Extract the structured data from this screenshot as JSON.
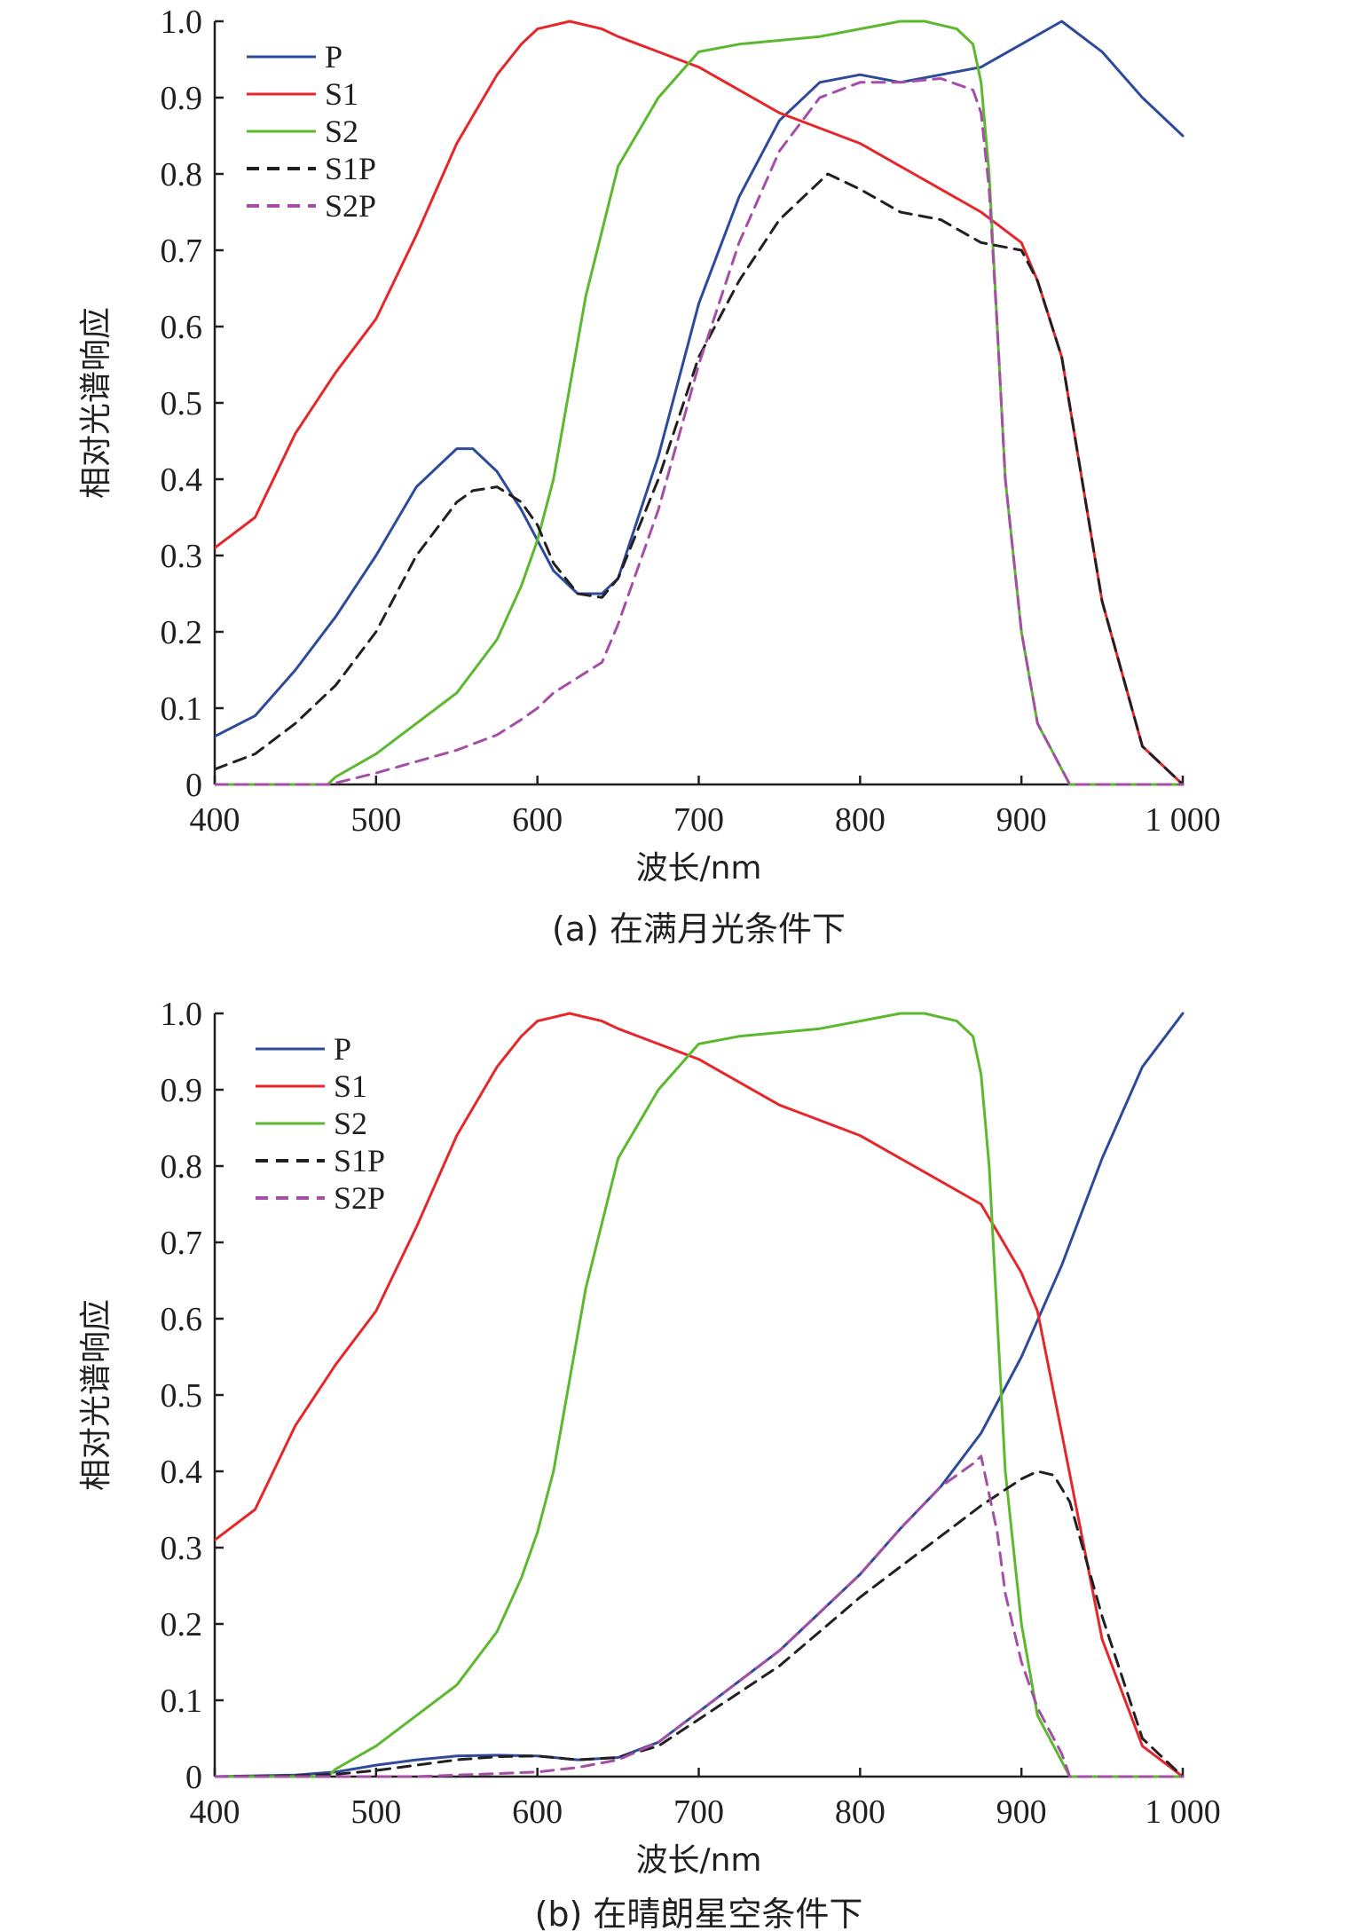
{
  "chart_data": [
    {
      "type": "line",
      "caption": "(a) 在满月光条件下",
      "xlabel": "波长/nm",
      "ylabel": "相对光谱响应",
      "xlim": [
        400,
        1000
      ],
      "ylim": [
        0,
        1.0
      ],
      "x_ticks": [
        400,
        500,
        600,
        700,
        800,
        900,
        1000
      ],
      "x_tick_labels": [
        "400",
        "500",
        "600",
        "700",
        "800",
        "900",
        "1 000"
      ],
      "y_ticks": [
        0,
        0.1,
        0.2,
        0.3,
        0.4,
        0.5,
        0.6,
        0.7,
        0.8,
        0.9,
        1.0
      ],
      "y_tick_labels": [
        "0",
        "0.1",
        "0.2",
        "0.3",
        "0.4",
        "0.5",
        "0.6",
        "0.7",
        "0.8",
        "0.9",
        "1.0"
      ],
      "legend_position": "top-left",
      "series": [
        {
          "name": "P",
          "color": "#2e4a9a",
          "dash": "solid",
          "x": [
            400,
            425,
            450,
            475,
            500,
            525,
            550,
            560,
            575,
            590,
            600,
            610,
            625,
            640,
            650,
            675,
            700,
            725,
            750,
            775,
            800,
            825,
            850,
            875,
            900,
            925,
            950,
            975,
            1000
          ],
          "y": [
            0.063,
            0.09,
            0.15,
            0.22,
            0.3,
            0.39,
            0.44,
            0.44,
            0.41,
            0.36,
            0.32,
            0.28,
            0.25,
            0.25,
            0.27,
            0.43,
            0.63,
            0.77,
            0.87,
            0.92,
            0.93,
            0.92,
            0.93,
            0.94,
            0.97,
            1.0,
            0.96,
            0.9,
            0.85
          ]
        },
        {
          "name": "S1",
          "color": "#e5262b",
          "dash": "solid",
          "x": [
            400,
            425,
            450,
            475,
            500,
            525,
            550,
            575,
            590,
            600,
            610,
            620,
            640,
            650,
            675,
            700,
            725,
            750,
            775,
            800,
            825,
            850,
            875,
            900,
            910,
            925,
            950,
            975,
            1000
          ],
          "y": [
            0.31,
            0.35,
            0.46,
            0.54,
            0.61,
            0.72,
            0.84,
            0.93,
            0.97,
            0.99,
            0.995,
            1.0,
            0.99,
            0.98,
            0.96,
            0.94,
            0.91,
            0.88,
            0.86,
            0.84,
            0.81,
            0.78,
            0.75,
            0.71,
            0.66,
            0.56,
            0.24,
            0.05,
            0.0
          ]
        },
        {
          "name": "S2",
          "color": "#5cb82e",
          "dash": "solid",
          "x": [
            400,
            470,
            475,
            500,
            525,
            550,
            575,
            590,
            600,
            610,
            620,
            630,
            650,
            675,
            700,
            725,
            750,
            775,
            800,
            825,
            840,
            860,
            870,
            875,
            880,
            885,
            890,
            900,
            910,
            920,
            925,
            930,
            1000
          ],
          "y": [
            0,
            0,
            0.01,
            0.04,
            0.08,
            0.12,
            0.19,
            0.26,
            0.32,
            0.4,
            0.52,
            0.64,
            0.81,
            0.9,
            0.96,
            0.97,
            0.975,
            0.98,
            0.99,
            1.0,
            1.0,
            0.99,
            0.97,
            0.92,
            0.8,
            0.6,
            0.4,
            0.2,
            0.08,
            0.04,
            0.02,
            0,
            0
          ]
        },
        {
          "name": "S1P",
          "color": "#231f20",
          "dash": "dashed",
          "x": [
            400,
            425,
            450,
            475,
            500,
            525,
            550,
            560,
            575,
            590,
            600,
            610,
            625,
            640,
            650,
            675,
            700,
            725,
            750,
            775,
            780,
            800,
            825,
            850,
            875,
            900,
            910,
            925,
            950,
            975,
            1000
          ],
          "y": [
            0.02,
            0.04,
            0.08,
            0.13,
            0.2,
            0.3,
            0.37,
            0.385,
            0.39,
            0.37,
            0.34,
            0.29,
            0.25,
            0.245,
            0.27,
            0.4,
            0.56,
            0.66,
            0.74,
            0.79,
            0.8,
            0.78,
            0.75,
            0.74,
            0.71,
            0.7,
            0.66,
            0.56,
            0.24,
            0.05,
            0.0
          ]
        },
        {
          "name": "S2P",
          "color": "#a44ea6",
          "dash": "dashed",
          "x": [
            400,
            470,
            475,
            500,
            525,
            550,
            575,
            590,
            600,
            610,
            625,
            640,
            650,
            675,
            700,
            725,
            750,
            775,
            800,
            825,
            850,
            870,
            875,
            880,
            885,
            890,
            900,
            910,
            920,
            925,
            930,
            1000
          ],
          "y": [
            0,
            0,
            0.002,
            0.015,
            0.03,
            0.045,
            0.065,
            0.085,
            0.1,
            0.12,
            0.14,
            0.16,
            0.21,
            0.36,
            0.55,
            0.71,
            0.83,
            0.9,
            0.92,
            0.92,
            0.925,
            0.91,
            0.88,
            0.78,
            0.6,
            0.4,
            0.2,
            0.08,
            0.04,
            0.02,
            0,
            0
          ]
        }
      ]
    },
    {
      "type": "line",
      "caption": "(b) 在晴朗星空条件下",
      "xlabel": "波长/nm",
      "ylabel": "相对光谱响应",
      "xlim": [
        400,
        1000
      ],
      "ylim": [
        0,
        1.0
      ],
      "x_ticks": [
        400,
        500,
        600,
        700,
        800,
        900,
        1000
      ],
      "x_tick_labels": [
        "400",
        "500",
        "600",
        "700",
        "800",
        "900",
        "1 000"
      ],
      "y_ticks": [
        0,
        0.1,
        0.2,
        0.3,
        0.4,
        0.5,
        0.6,
        0.7,
        0.8,
        0.9,
        1.0
      ],
      "y_tick_labels": [
        "0",
        "0.1",
        "0.2",
        "0.3",
        "0.4",
        "0.5",
        "0.6",
        "0.7",
        "0.8",
        "0.9",
        "1.0"
      ],
      "legend_position": "top-left",
      "series": [
        {
          "name": "P",
          "color": "#2e4a9a",
          "dash": "solid",
          "x": [
            400,
            450,
            475,
            500,
            525,
            550,
            575,
            600,
            625,
            650,
            675,
            700,
            725,
            750,
            775,
            800,
            825,
            850,
            875,
            900,
            925,
            950,
            975,
            1000
          ],
          "y": [
            0.0,
            0.002,
            0.006,
            0.015,
            0.022,
            0.027,
            0.028,
            0.027,
            0.022,
            0.025,
            0.045,
            0.085,
            0.125,
            0.165,
            0.215,
            0.265,
            0.325,
            0.38,
            0.45,
            0.55,
            0.67,
            0.81,
            0.93,
            1.0
          ]
        },
        {
          "name": "S1",
          "color": "#e5262b",
          "dash": "solid",
          "x": [
            400,
            425,
            450,
            475,
            500,
            525,
            550,
            575,
            590,
            600,
            610,
            620,
            640,
            650,
            675,
            700,
            725,
            750,
            775,
            800,
            825,
            850,
            875,
            900,
            910,
            925,
            950,
            975,
            1000
          ],
          "y": [
            0.31,
            0.35,
            0.46,
            0.54,
            0.61,
            0.72,
            0.84,
            0.93,
            0.97,
            0.99,
            0.995,
            1.0,
            0.99,
            0.98,
            0.96,
            0.94,
            0.91,
            0.88,
            0.86,
            0.84,
            0.81,
            0.78,
            0.75,
            0.66,
            0.61,
            0.45,
            0.18,
            0.04,
            0.0
          ]
        },
        {
          "name": "S2",
          "color": "#5cb82e",
          "dash": "solid",
          "x": [
            400,
            470,
            475,
            500,
            525,
            550,
            575,
            590,
            600,
            610,
            620,
            630,
            650,
            675,
            700,
            725,
            750,
            775,
            800,
            825,
            840,
            860,
            870,
            875,
            880,
            885,
            890,
            900,
            910,
            920,
            925,
            930,
            1000
          ],
          "y": [
            0,
            0,
            0.01,
            0.04,
            0.08,
            0.12,
            0.19,
            0.26,
            0.32,
            0.4,
            0.52,
            0.64,
            0.81,
            0.9,
            0.96,
            0.97,
            0.975,
            0.98,
            0.99,
            1.0,
            1.0,
            0.99,
            0.97,
            0.92,
            0.8,
            0.6,
            0.4,
            0.2,
            0.08,
            0.04,
            0.02,
            0,
            0
          ]
        },
        {
          "name": "S1P",
          "color": "#231f20",
          "dash": "dashed",
          "x": [
            400,
            450,
            475,
            500,
            525,
            550,
            575,
            600,
            625,
            650,
            675,
            700,
            725,
            750,
            775,
            800,
            825,
            850,
            875,
            900,
            910,
            920,
            930,
            950,
            975,
            1000
          ],
          "y": [
            0.0,
            0.001,
            0.003,
            0.008,
            0.015,
            0.022,
            0.026,
            0.027,
            0.022,
            0.025,
            0.04,
            0.075,
            0.11,
            0.145,
            0.19,
            0.235,
            0.275,
            0.315,
            0.355,
            0.39,
            0.4,
            0.395,
            0.36,
            0.21,
            0.05,
            0.0
          ]
        },
        {
          "name": "S2P",
          "color": "#a44ea6",
          "dash": "dashed",
          "x": [
            400,
            470,
            475,
            500,
            525,
            550,
            575,
            600,
            625,
            650,
            675,
            700,
            725,
            750,
            775,
            800,
            825,
            850,
            870,
            875,
            880,
            885,
            890,
            900,
            910,
            920,
            925,
            930,
            1000
          ],
          "y": [
            0,
            0,
            0.0,
            0.0,
            0.0,
            0.002,
            0.004,
            0.006,
            0.012,
            0.022,
            0.045,
            0.085,
            0.125,
            0.165,
            0.215,
            0.265,
            0.325,
            0.38,
            0.41,
            0.42,
            0.37,
            0.32,
            0.24,
            0.15,
            0.09,
            0.05,
            0.03,
            0,
            0
          ]
        }
      ]
    }
  ]
}
